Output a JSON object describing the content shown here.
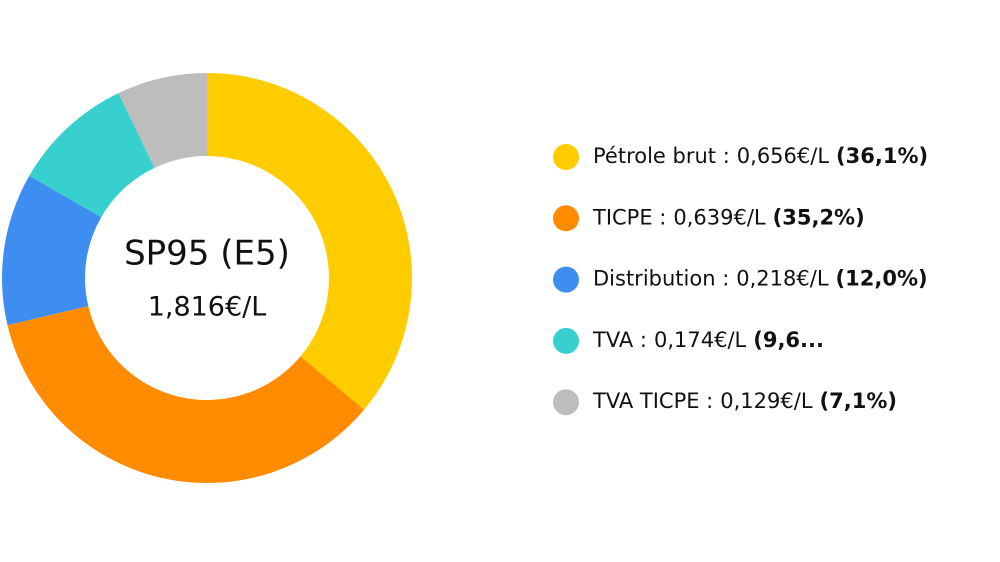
{
  "chart_data": {
    "type": "pie",
    "donut": true,
    "title": "SP95 (E5)",
    "subtitle": "1,816€/L",
    "categories": [
      "Pétrole brut :",
      "TICPE :",
      "Distribution :",
      "TVA :",
      "TVA TICPE :"
    ],
    "price_labels": [
      "0,656€/L",
      "0,639€/L",
      "0,218€/L",
      "0,174€/L",
      "0,129€/L"
    ],
    "values": [
      36.1,
      35.2,
      12.0,
      9.6,
      7.1
    ],
    "value_labels": [
      "(36,1%)",
      "(35,2%)",
      "(12,0%)",
      "(9,6...",
      "(7,1%)"
    ],
    "colors": [
      "#ffcc00",
      "#ff8c00",
      "#3d8ef0",
      "#38cfcf",
      "#bdbdbd"
    ],
    "legend": "right"
  }
}
